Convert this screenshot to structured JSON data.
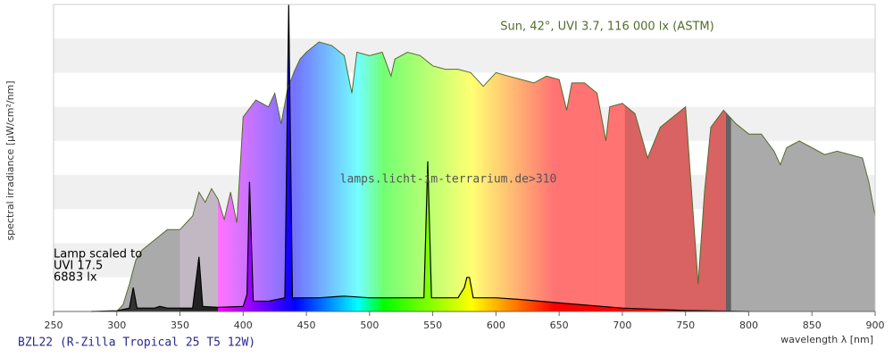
{
  "chart_data": {
    "type": "spectrum",
    "x_label": "wavelength λ [nm]",
    "y_label": "spectral irradiance [µW/cm²/nm]",
    "watermark": "lamps.licht-im-terrarium.de>310",
    "annotations": [
      "Lamp scaled to",
      "UVI 17.5",
      "6883 lx"
    ],
    "xlim": [
      250,
      900
    ],
    "xticks": [
      250,
      300,
      350,
      400,
      450,
      500,
      550,
      600,
      650,
      700,
      750,
      800,
      850,
      900
    ],
    "ylim": [
      0,
      9
    ],
    "grid": true,
    "series": [
      {
        "name": "Sun, 42°, UVI 3.7, 116 000 lx (ASTM)",
        "color": "#556b2f",
        "x": [
          300,
          305,
          310,
          315,
          320,
          330,
          340,
          350,
          355,
          360,
          365,
          370,
          375,
          380,
          385,
          390,
          395,
          400,
          410,
          420,
          425,
          430,
          435,
          440,
          445,
          450,
          460,
          470,
          480,
          486,
          490,
          500,
          510,
          517,
          520,
          530,
          540,
          550,
          560,
          570,
          580,
          590,
          600,
          610,
          620,
          630,
          640,
          650,
          656,
          660,
          670,
          680,
          687,
          690,
          700,
          710,
          720,
          730,
          740,
          750,
          760,
          765,
          770,
          780,
          790,
          800,
          810,
          820,
          825,
          830,
          840,
          850,
          860,
          870,
          880,
          890,
          895,
          900
        ],
        "values": [
          0,
          0.2,
          0.8,
          1.5,
          1.8,
          2.1,
          2.4,
          2.4,
          2.6,
          2.8,
          3.5,
          3.2,
          3.6,
          3.3,
          2.7,
          3.5,
          2.6,
          5.7,
          6.2,
          6.0,
          6.4,
          5.5,
          6.5,
          7.0,
          7.4,
          7.6,
          7.9,
          7.8,
          7.5,
          6.4,
          7.6,
          7.5,
          7.6,
          6.9,
          7.4,
          7.6,
          7.5,
          7.2,
          7.1,
          7.1,
          7.0,
          6.6,
          7.0,
          6.9,
          6.8,
          6.7,
          6.9,
          6.8,
          5.9,
          6.7,
          6.7,
          6.4,
          5.0,
          6.0,
          6.1,
          5.8,
          4.5,
          5.4,
          5.7,
          6.0,
          0.8,
          3.5,
          5.4,
          5.9,
          5.5,
          5.2,
          5.2,
          4.7,
          4.3,
          4.8,
          5.0,
          4.8,
          4.6,
          4.7,
          4.6,
          4.5,
          3.8,
          2.8
        ]
      },
      {
        "name": "BZL22 (R-Zilla Tropical 25 T5 12W)",
        "color": "#000000",
        "x": [
          280,
          300,
          310,
          313,
          316,
          330,
          334,
          340,
          360,
          365,
          368,
          380,
          400,
          403,
          405,
          408,
          420,
          433,
          436,
          439,
          460,
          480,
          500,
          520,
          543,
          546,
          549,
          570,
          575,
          577,
          579,
          582,
          600,
          620,
          650,
          700,
          750,
          800
        ],
        "values": [
          0,
          0.02,
          0.1,
          0.7,
          0.1,
          0.1,
          0.15,
          0.1,
          0.1,
          1.6,
          0.15,
          0.12,
          0.15,
          0.5,
          3.8,
          0.3,
          0.3,
          0.4,
          9,
          0.4,
          0.4,
          0.45,
          0.4,
          0.4,
          0.4,
          4.4,
          0.4,
          0.4,
          0.7,
          1.0,
          1.0,
          0.4,
          0.4,
          0.35,
          0.25,
          0.1,
          0.03,
          0
        ]
      }
    ]
  }
}
